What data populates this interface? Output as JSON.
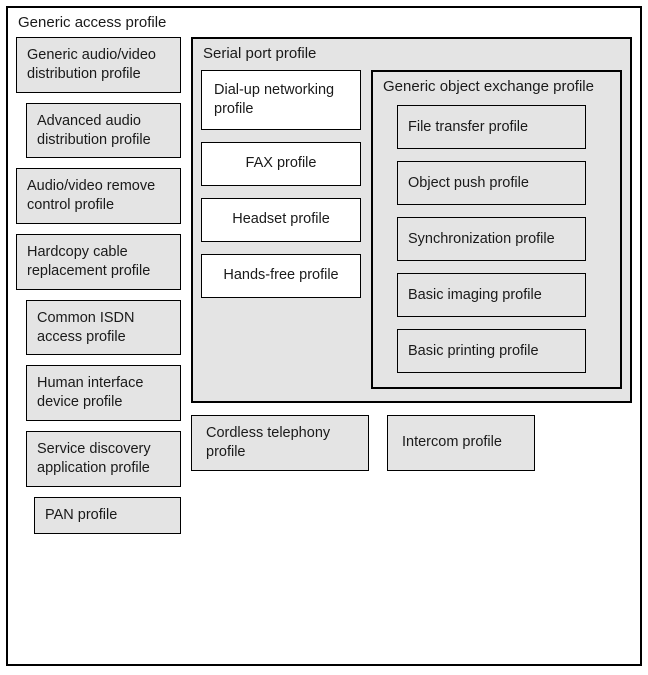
{
  "type": "nested-box-diagram",
  "colors": {
    "background": "#ffffff",
    "box_fill": "#e4e4e4",
    "box_fill_white": "#ffffff",
    "border": "#000000",
    "text": "#1a1a1a"
  },
  "typography": {
    "font_family": "Arial",
    "body_fontsize": 14.5,
    "title_fontsize": 15
  },
  "outer": {
    "title": "Generic access profile"
  },
  "left_profiles": [
    {
      "label": "Generic audio/video distribution profile",
      "indent": 0
    },
    {
      "label": "Advanced audio distribution profile",
      "indent": 1
    },
    {
      "label": "Audio/video remove control profile",
      "indent": 0
    },
    {
      "label": "Hardcopy cable replacement profile",
      "indent": 0
    },
    {
      "label": "Common ISDN access profile",
      "indent": 1
    },
    {
      "label": "Human interface device profile",
      "indent": 1
    },
    {
      "label": "Service discovery application profile",
      "indent": 1
    },
    {
      "label": "PAN profile",
      "indent": 2
    }
  ],
  "serial": {
    "title": "Serial port profile",
    "left": [
      {
        "label": "Dial-up networking profile",
        "bg": "white"
      },
      {
        "label": "FAX profile",
        "bg": "white",
        "center": true
      },
      {
        "label": "Headset profile",
        "bg": "white",
        "center": true
      },
      {
        "label": "Hands-free profile",
        "bg": "white",
        "center": true
      }
    ],
    "goep": {
      "title": "Generic object exchange profile",
      "items": [
        {
          "label": "File transfer profile"
        },
        {
          "label": "Object push profile"
        },
        {
          "label": "Synchronization profile"
        },
        {
          "label": "Basic imaging profile"
        },
        {
          "label": "Basic printing profile"
        }
      ]
    }
  },
  "bottom": [
    {
      "label": "Cordless telephony profile"
    },
    {
      "label": "Intercom profile"
    }
  ]
}
